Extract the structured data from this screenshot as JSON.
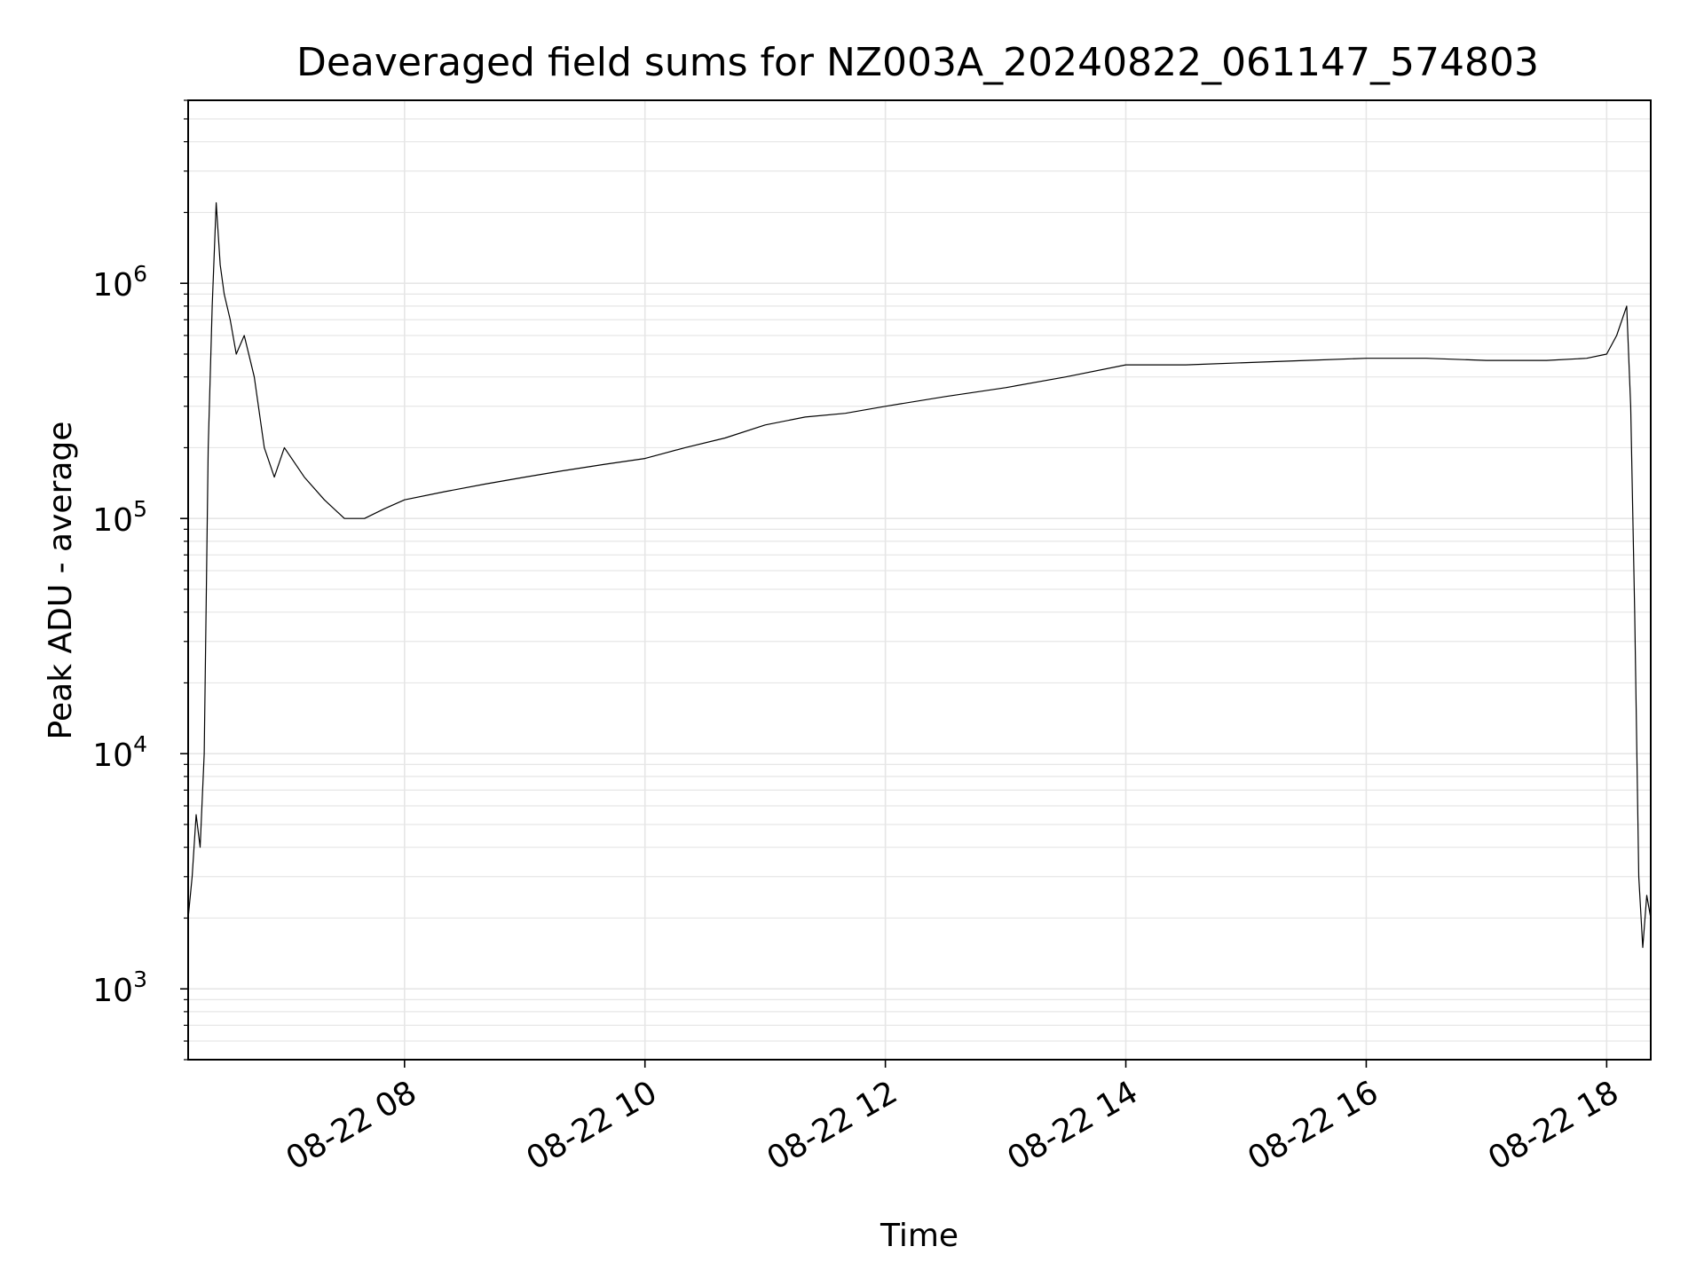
{
  "chart_data": {
    "type": "line",
    "title": "Deaveraged field sums for NZ003A_20240822_061147_574803",
    "xlabel": "Time",
    "ylabel": "Peak ADU - average",
    "x_scale": "time",
    "y_scale": "log",
    "xlim": [
      "2024-08-22 06:12",
      "2024-08-22 18:22"
    ],
    "ylim": [
      500,
      6000000
    ],
    "x_ticks": [
      {
        "value": "2024-08-22 08:00",
        "label": "08-22 08"
      },
      {
        "value": "2024-08-22 10:00",
        "label": "08-22 10"
      },
      {
        "value": "2024-08-22 12:00",
        "label": "08-22 12"
      },
      {
        "value": "2024-08-22 14:00",
        "label": "08-22 14"
      },
      {
        "value": "2024-08-22 16:00",
        "label": "08-22 16"
      },
      {
        "value": "2024-08-22 18:00",
        "label": "08-22 18"
      }
    ],
    "y_ticks": [
      {
        "value": 1000,
        "base": "10",
        "exp": "3"
      },
      {
        "value": 10000,
        "base": "10",
        "exp": "4"
      },
      {
        "value": 100000,
        "base": "10",
        "exp": "5"
      },
      {
        "value": 1000000,
        "base": "10",
        "exp": "6"
      }
    ],
    "grid": true,
    "line_color": "#000000",
    "grid_color": "#e6e6e6",
    "series": [
      {
        "x": [
          "2024-08-22 06:12",
          "2024-08-22 06:14",
          "2024-08-22 06:16",
          "2024-08-22 06:18",
          "2024-08-22 06:20",
          "2024-08-22 06:22",
          "2024-08-22 06:24",
          "2024-08-22 06:26",
          "2024-08-22 06:28",
          "2024-08-22 06:30",
          "2024-08-22 06:33",
          "2024-08-22 06:36",
          "2024-08-22 06:40",
          "2024-08-22 06:45",
          "2024-08-22 06:50",
          "2024-08-22 06:55",
          "2024-08-22 07:00",
          "2024-08-22 07:10",
          "2024-08-22 07:20",
          "2024-08-22 07:30",
          "2024-08-22 07:40",
          "2024-08-22 07:50",
          "2024-08-22 08:00",
          "2024-08-22 08:20",
          "2024-08-22 08:40",
          "2024-08-22 09:00",
          "2024-08-22 09:20",
          "2024-08-22 09:40",
          "2024-08-22 10:00",
          "2024-08-22 10:20",
          "2024-08-22 10:40",
          "2024-08-22 11:00",
          "2024-08-22 11:20",
          "2024-08-22 11:40",
          "2024-08-22 12:00",
          "2024-08-22 12:30",
          "2024-08-22 13:00",
          "2024-08-22 13:30",
          "2024-08-22 14:00",
          "2024-08-22 14:30",
          "2024-08-22 15:00",
          "2024-08-22 15:30",
          "2024-08-22 16:00",
          "2024-08-22 16:30",
          "2024-08-22 17:00",
          "2024-08-22 17:30",
          "2024-08-22 17:50",
          "2024-08-22 18:00",
          "2024-08-22 18:05",
          "2024-08-22 18:10",
          "2024-08-22 18:12",
          "2024-08-22 18:14",
          "2024-08-22 18:16",
          "2024-08-22 18:18",
          "2024-08-22 18:20",
          "2024-08-22 18:22"
        ],
        "y": [
          2000,
          3000,
          5500,
          4000,
          10000,
          200000,
          800000,
          2200000,
          1200000,
          900000,
          700000,
          500000,
          600000,
          400000,
          200000,
          150000,
          200000,
          150000,
          120000,
          100000,
          100000,
          110000,
          120000,
          130000,
          140000,
          150000,
          160000,
          170000,
          180000,
          200000,
          220000,
          250000,
          270000,
          280000,
          300000,
          330000,
          360000,
          400000,
          450000,
          450000,
          460000,
          470000,
          480000,
          480000,
          470000,
          470000,
          480000,
          500000,
          600000,
          800000,
          300000,
          40000,
          3000,
          1500,
          2500,
          2000
        ]
      }
    ]
  }
}
